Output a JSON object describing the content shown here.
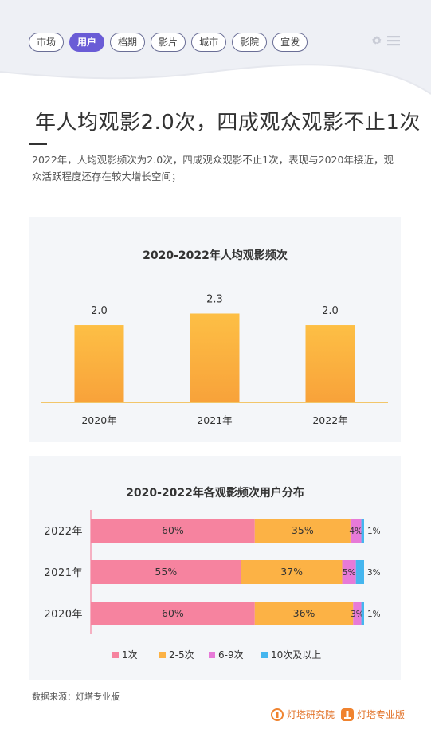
{
  "nav": {
    "tabs": [
      {
        "label": "市场",
        "active": false
      },
      {
        "label": "用户",
        "active": true
      },
      {
        "label": "档期",
        "active": false
      },
      {
        "label": "影片",
        "active": false
      },
      {
        "label": "城市",
        "active": false
      },
      {
        "label": "影院",
        "active": false
      },
      {
        "label": "宣发",
        "active": false
      }
    ],
    "icons": [
      "gear-icon",
      "menu-icon"
    ]
  },
  "page": {
    "title": "年人均观影2.0次，四成观众观影不止1次",
    "description": "2022年，人均观影频次为2.0次，四成观众观影不止1次，表现与2020年接近，观众活跃程度还存在较大增长空间；"
  },
  "chart_data": [
    {
      "type": "bar",
      "title": "2020-2022年人均观影频次",
      "categories": [
        "2020年",
        "2021年",
        "2022年"
      ],
      "values": [
        2.0,
        2.3,
        2.0
      ],
      "value_labels": [
        "2.0",
        "2.3",
        "2.0"
      ],
      "ylim": [
        0,
        3.3
      ],
      "grid": false,
      "colors": {
        "bar_top": "#fdbf45",
        "bar_bottom": "#f8a23a",
        "axis": "#f2b53a"
      }
    },
    {
      "type": "bar",
      "orientation": "horizontal",
      "stacked": true,
      "title": "2020-2022年各观影频次用户分布",
      "categories": [
        "2022年",
        "2021年",
        "2020年"
      ],
      "series": [
        {
          "name": "1次",
          "values": [
            60,
            55,
            60
          ],
          "labels": [
            "60%",
            "55%",
            "60%"
          ],
          "color": "#f6839f"
        },
        {
          "name": "2-5次",
          "values": [
            35,
            37,
            36
          ],
          "labels": [
            "35%",
            "37%",
            "36%"
          ],
          "color": "#fcb245"
        },
        {
          "name": "6-9次",
          "values": [
            4,
            5,
            3
          ],
          "labels": [
            "4%",
            "5%",
            "3%"
          ],
          "color": "#e77ad8"
        },
        {
          "name": "10次及以上",
          "values": [
            1,
            3,
            1
          ],
          "labels": [
            "1%",
            "3%",
            "1%"
          ],
          "color": "#45b6ef"
        }
      ],
      "xlim": [
        0,
        100
      ],
      "legend": "bottom"
    }
  ],
  "footer": {
    "source": "数据来源：灯塔专业版",
    "brands": [
      {
        "name": "灯塔研究院",
        "icon": "lighthouse-research-logo-icon"
      },
      {
        "name": "灯塔专业版",
        "icon": "lighthouse-pro-logo-icon"
      }
    ],
    "accent": "#e2742b"
  }
}
